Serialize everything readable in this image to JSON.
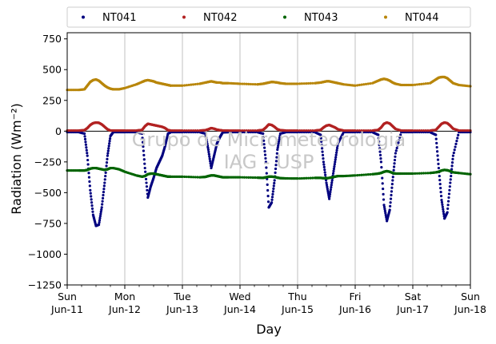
{
  "chart_data": {
    "type": "scatter",
    "title": "",
    "xlabel": "Day",
    "ylabel": "Radiation (Wm⁻²)",
    "ylim": [
      -1250,
      800
    ],
    "xlim": [
      0,
      7
    ],
    "yticks": [
      -1250,
      -1000,
      -750,
      -500,
      -250,
      0,
      250,
      500,
      750
    ],
    "xticks": [
      {
        "x": 0,
        "day": "Sun",
        "date": "Jun-11"
      },
      {
        "x": 1,
        "day": "Mon",
        "date": "Jun-12"
      },
      {
        "x": 2,
        "day": "Tue",
        "date": "Jun-13"
      },
      {
        "x": 3,
        "day": "Wed",
        "date": "Jun-14"
      },
      {
        "x": 4,
        "day": "Thu",
        "date": "Jun-15"
      },
      {
        "x": 5,
        "day": "Fri",
        "date": "Jun-16"
      },
      {
        "x": 6,
        "day": "Sat",
        "date": "Jun-17"
      },
      {
        "x": 7,
        "day": "Sun",
        "date": "Jun-18"
      }
    ],
    "grid": "vertical",
    "zero_line": true,
    "legend_position": "top",
    "watermark": [
      "Grupo de Micrometeorologia",
      "IAG - USP"
    ],
    "series": [
      {
        "name": "NT041",
        "color": "#00007f",
        "x": [
          0.0,
          0.2,
          0.3,
          0.35,
          0.4,
          0.45,
          0.5,
          0.55,
          0.6,
          0.65,
          0.7,
          0.75,
          0.8,
          0.9,
          1.0,
          1.2,
          1.3,
          1.35,
          1.4,
          1.45,
          1.5,
          1.55,
          1.6,
          1.65,
          1.7,
          1.75,
          1.8,
          2.0,
          2.3,
          2.4,
          2.45,
          2.5,
          2.55,
          2.6,
          2.65,
          2.7,
          2.8,
          3.0,
          3.3,
          3.4,
          3.45,
          3.5,
          3.55,
          3.6,
          3.65,
          3.7,
          3.8,
          4.0,
          4.3,
          4.4,
          4.45,
          4.5,
          4.55,
          4.6,
          4.65,
          4.7,
          4.8,
          5.0,
          5.3,
          5.4,
          5.45,
          5.5,
          5.55,
          5.6,
          5.65,
          5.7,
          5.8,
          6.0,
          6.3,
          6.4,
          6.45,
          6.5,
          6.55,
          6.6,
          6.65,
          6.7,
          6.8,
          7.0
        ],
        "y": [
          -8,
          -8,
          -20,
          -200,
          -480,
          -680,
          -770,
          -760,
          -620,
          -420,
          -200,
          -40,
          -8,
          -8,
          -8,
          -8,
          -20,
          -300,
          -540,
          -450,
          -380,
          -300,
          -250,
          -200,
          -120,
          -20,
          -8,
          -8,
          -8,
          -20,
          -150,
          -300,
          -200,
          -100,
          -50,
          -10,
          -8,
          -8,
          -8,
          -20,
          -250,
          -620,
          -580,
          -400,
          -150,
          -20,
          -8,
          -8,
          -8,
          -30,
          -250,
          -420,
          -550,
          -400,
          -250,
          -100,
          -8,
          -8,
          -8,
          -30,
          -250,
          -600,
          -730,
          -640,
          -400,
          -180,
          -8,
          -8,
          -8,
          -30,
          -300,
          -560,
          -710,
          -660,
          -420,
          -200,
          -8,
          -8
        ]
      },
      {
        "name": "NT042",
        "color": "#b22222",
        "x": [
          0.0,
          0.2,
          0.3,
          0.35,
          0.4,
          0.45,
          0.5,
          0.55,
          0.6,
          0.65,
          0.7,
          0.75,
          0.8,
          0.9,
          1.0,
          1.2,
          1.3,
          1.35,
          1.4,
          1.45,
          1.5,
          1.55,
          1.6,
          1.65,
          1.7,
          1.75,
          1.8,
          2.0,
          2.3,
          2.4,
          2.45,
          2.5,
          2.55,
          2.6,
          2.65,
          2.7,
          2.8,
          3.0,
          3.3,
          3.4,
          3.45,
          3.5,
          3.55,
          3.6,
          3.65,
          3.7,
          3.8,
          4.0,
          4.3,
          4.4,
          4.45,
          4.5,
          4.55,
          4.6,
          4.65,
          4.7,
          4.8,
          5.0,
          5.3,
          5.4,
          5.45,
          5.5,
          5.55,
          5.6,
          5.65,
          5.7,
          5.8,
          6.0,
          6.3,
          6.4,
          6.45,
          6.5,
          6.55,
          6.6,
          6.65,
          6.7,
          6.8,
          7.0
        ],
        "y": [
          5,
          5,
          8,
          25,
          50,
          65,
          70,
          68,
          55,
          35,
          15,
          5,
          5,
          5,
          5,
          5,
          10,
          40,
          60,
          55,
          50,
          45,
          40,
          35,
          25,
          8,
          5,
          5,
          5,
          8,
          15,
          25,
          20,
          12,
          8,
          5,
          5,
          5,
          5,
          10,
          30,
          55,
          50,
          35,
          15,
          8,
          5,
          5,
          5,
          10,
          30,
          45,
          50,
          40,
          30,
          15,
          5,
          5,
          5,
          10,
          30,
          60,
          70,
          62,
          40,
          18,
          5,
          5,
          5,
          10,
          35,
          60,
          70,
          65,
          45,
          20,
          5,
          5
        ]
      },
      {
        "name": "NT043",
        "color": "#006400",
        "x": [
          0.0,
          0.2,
          0.3,
          0.35,
          0.4,
          0.45,
          0.5,
          0.55,
          0.6,
          0.65,
          0.7,
          0.75,
          0.8,
          0.9,
          1.0,
          1.2,
          1.3,
          1.35,
          1.4,
          1.45,
          1.5,
          1.55,
          1.6,
          1.65,
          1.7,
          1.75,
          1.8,
          2.0,
          2.3,
          2.4,
          2.45,
          2.5,
          2.55,
          2.6,
          2.65,
          2.7,
          2.8,
          3.0,
          3.3,
          3.4,
          3.45,
          3.5,
          3.55,
          3.6,
          3.65,
          3.7,
          3.8,
          4.0,
          4.3,
          4.4,
          4.45,
          4.5,
          4.55,
          4.6,
          4.65,
          4.7,
          4.8,
          5.0,
          5.3,
          5.4,
          5.45,
          5.5,
          5.55,
          5.6,
          5.65,
          5.7,
          5.8,
          6.0,
          6.3,
          6.4,
          6.45,
          6.5,
          6.55,
          6.6,
          6.65,
          6.7,
          6.8,
          7.0
        ],
        "y": [
          -320,
          -320,
          -320,
          -315,
          -305,
          -300,
          -300,
          -305,
          -310,
          -315,
          -310,
          -300,
          -300,
          -310,
          -330,
          -360,
          -370,
          -365,
          -350,
          -345,
          -345,
          -350,
          -355,
          -360,
          -365,
          -370,
          -370,
          -370,
          -375,
          -372,
          -365,
          -360,
          -360,
          -365,
          -370,
          -375,
          -375,
          -375,
          -378,
          -380,
          -375,
          -370,
          -370,
          -372,
          -378,
          -382,
          -384,
          -385,
          -380,
          -380,
          -382,
          -383,
          -380,
          -375,
          -370,
          -365,
          -365,
          -360,
          -350,
          -345,
          -340,
          -330,
          -325,
          -330,
          -340,
          -345,
          -345,
          -345,
          -340,
          -335,
          -330,
          -320,
          -315,
          -318,
          -325,
          -335,
          -340,
          -350
        ]
      },
      {
        "name": "NT044",
        "color": "#b8860b",
        "x": [
          0.0,
          0.2,
          0.3,
          0.35,
          0.4,
          0.45,
          0.5,
          0.55,
          0.6,
          0.65,
          0.7,
          0.75,
          0.8,
          0.9,
          1.0,
          1.2,
          1.3,
          1.35,
          1.4,
          1.45,
          1.5,
          1.55,
          1.6,
          1.65,
          1.7,
          1.75,
          1.8,
          2.0,
          2.3,
          2.4,
          2.45,
          2.5,
          2.55,
          2.6,
          2.65,
          2.7,
          2.8,
          3.0,
          3.3,
          3.4,
          3.45,
          3.5,
          3.55,
          3.6,
          3.65,
          3.7,
          3.8,
          4.0,
          4.3,
          4.4,
          4.45,
          4.5,
          4.55,
          4.6,
          4.65,
          4.7,
          4.8,
          5.0,
          5.3,
          5.4,
          5.45,
          5.5,
          5.55,
          5.6,
          5.65,
          5.7,
          5.8,
          6.0,
          6.3,
          6.4,
          6.45,
          6.5,
          6.55,
          6.6,
          6.65,
          6.7,
          6.8,
          7.0
        ],
        "y": [
          335,
          335,
          340,
          370,
          400,
          415,
          420,
          410,
          390,
          370,
          355,
          345,
          340,
          340,
          350,
          380,
          400,
          410,
          415,
          410,
          405,
          395,
          390,
          385,
          380,
          375,
          370,
          370,
          385,
          395,
          400,
          405,
          400,
          395,
          395,
          390,
          390,
          385,
          380,
          385,
          390,
          395,
          400,
          398,
          395,
          390,
          385,
          385,
          390,
          395,
          400,
          405,
          405,
          400,
          395,
          390,
          380,
          370,
          390,
          410,
          420,
          425,
          420,
          410,
          395,
          385,
          375,
          375,
          390,
          420,
          435,
          440,
          440,
          430,
          410,
          390,
          375,
          365
        ]
      }
    ]
  }
}
